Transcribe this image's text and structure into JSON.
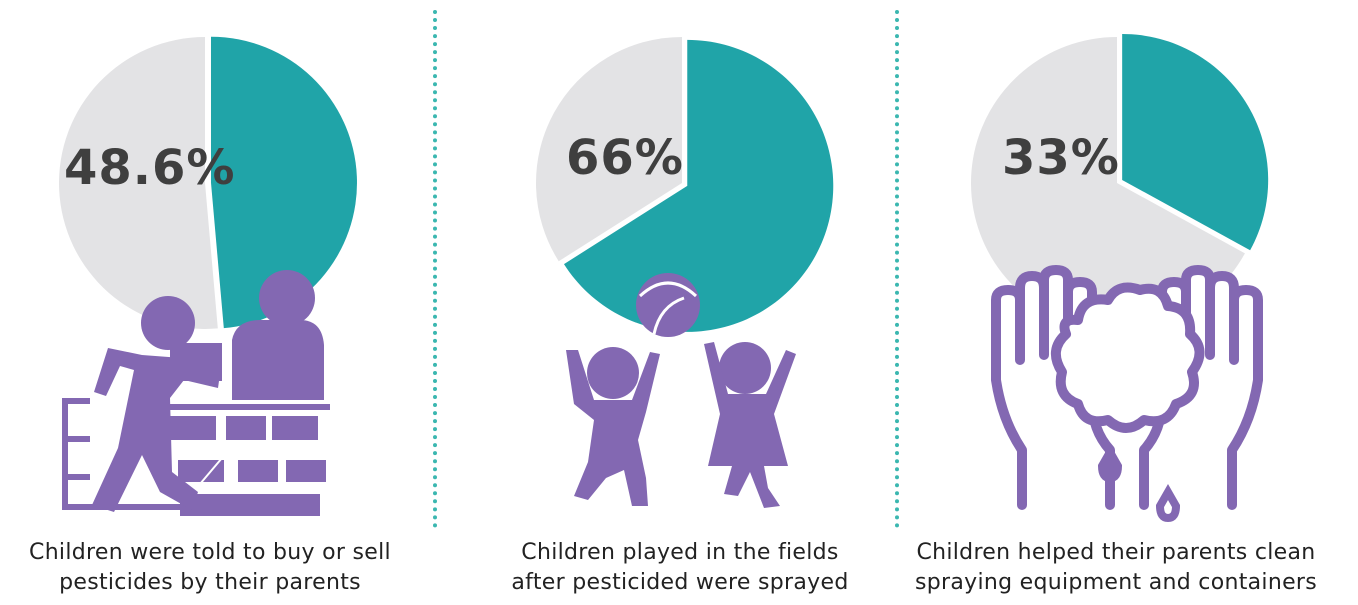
{
  "colors": {
    "teal": "#20a4a8",
    "gray": "#e3e3e5",
    "purple": "#8368b2",
    "text": "#3f3f3f"
  },
  "chart_data": [
    {
      "type": "pie",
      "slice_value_percent": 48.6,
      "label": "48.6%",
      "caption_lines": [
        "Children were told to buy or sell",
        "pesticides by their parents"
      ],
      "icon": "shop-counter-icon"
    },
    {
      "type": "pie",
      "slice_value_percent": 66,
      "label": "66%",
      "caption_lines": [
        "Children played in the fields",
        "after pesticided were sprayed"
      ],
      "icon": "children-playing-ball-icon"
    },
    {
      "type": "pie",
      "slice_value_percent": 33,
      "label": "33%",
      "caption_lines": [
        "Children helped their parents clean",
        "spraying equipment and containers"
      ],
      "icon": "washing-hands-icon"
    }
  ]
}
